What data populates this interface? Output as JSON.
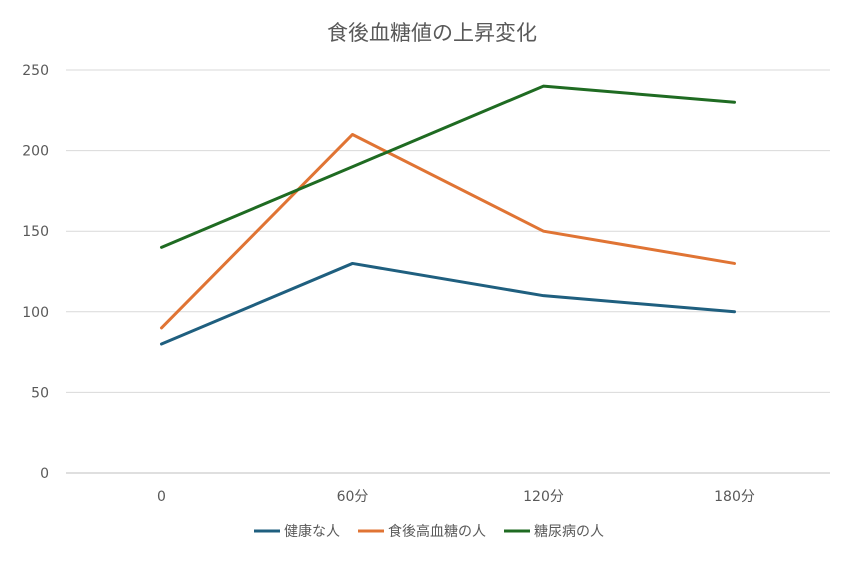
{
  "chart_data": {
    "type": "line",
    "title": "食後血糖値の上昇変化",
    "categories": [
      "0",
      "60分",
      "120分",
      "180分"
    ],
    "ylim": [
      0,
      250
    ],
    "yticks": [
      0,
      50,
      100,
      150,
      200,
      250
    ],
    "grid": true,
    "legend_position": "bottom",
    "series": [
      {
        "name": "健康な人",
        "color": "#1f5f7f",
        "values": [
          80,
          130,
          110,
          100
        ]
      },
      {
        "name": "食後高血糖の人",
        "color": "#e07434",
        "values": [
          90,
          210,
          150,
          130
        ]
      },
      {
        "name": "糖尿病の人",
        "color": "#1f6b22",
        "values": [
          140,
          190,
          240,
          230
        ]
      }
    ]
  }
}
